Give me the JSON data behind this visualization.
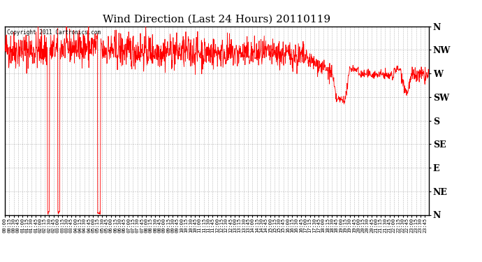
{
  "title": "Wind Direction (Last 24 Hours) 20110119",
  "copyright_text": "Copyright 2011 Cartronics.com",
  "background_color": "#ffffff",
  "plot_background_color": "#ffffff",
  "line_color": "#ff0000",
  "grid_color": "#888888",
  "ytick_labels": [
    "N",
    "NW",
    "W",
    "SW",
    "S",
    "SE",
    "E",
    "NE",
    "N"
  ],
  "ytick_values": [
    360,
    315,
    270,
    225,
    180,
    135,
    90,
    45,
    0
  ],
  "ylim": [
    0,
    360
  ],
  "xtick_interval_minutes": 15,
  "total_minutes": 1440,
  "figsize": [
    6.9,
    3.75
  ],
  "dpi": 100
}
